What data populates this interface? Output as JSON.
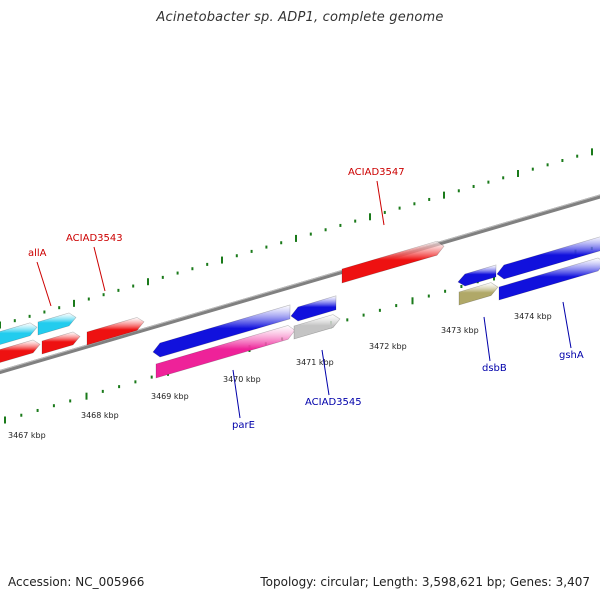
{
  "title": "Acinetobacter sp. ADP1, complete genome",
  "footer": {
    "accession": "Accession: NC_005966",
    "topology": "Topology: circular; Length: 3,598,621 bp; Genes: 3,407"
  },
  "colors": {
    "backbone": "#808080",
    "tick": "#1a7a1a",
    "forward_label": "#cc0000",
    "reverse_label": "#0000aa",
    "red_gene": "#ee1111",
    "cyan_gene": "#22ccee",
    "blue_gene": "#1111dd",
    "magenta_gene": "#ee2299",
    "gray_gene": "#c4c4c4",
    "olive_gene": "#b0a868"
  },
  "tick_labels": [
    "3467 kbp",
    "3468 kbp",
    "3469 kbp",
    "3470 kbp",
    "3471 kbp",
    "3472 kbp",
    "3473 kbp",
    "3474 kbp"
  ],
  "gene_labels": {
    "forward": [
      "allA",
      "ACIAD3543",
      "ACIAD3547"
    ],
    "reverse": [
      "parE",
      "ACIAD3545",
      "dsbB",
      "gshA"
    ]
  }
}
